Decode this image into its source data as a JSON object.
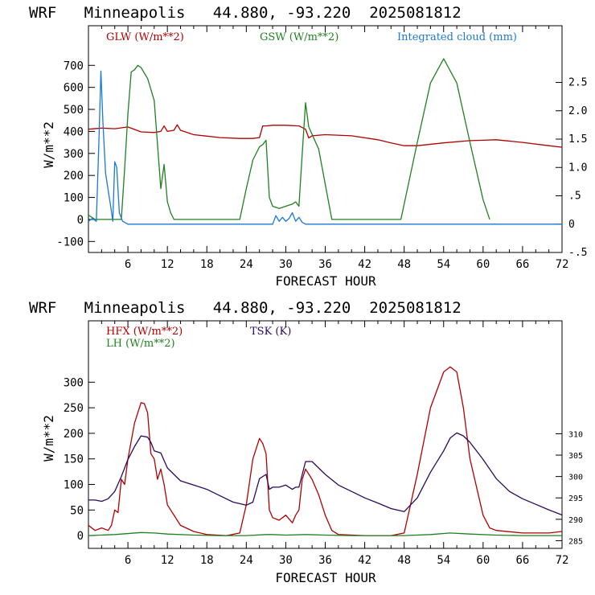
{
  "chart_data": [
    {
      "type": "line",
      "title": "WRF   Minneapolis   44.880, -93.220  2025081812",
      "xlabel": "FORECAST HOUR",
      "ylabel": "W/m**2",
      "xlim": [
        0,
        72
      ],
      "x_ticks": [
        "6",
        "12",
        "18",
        "24",
        "30",
        "36",
        "42",
        "48",
        "54",
        "60",
        "66",
        "72"
      ],
      "ylim": [
        -150,
        880
      ],
      "y_ticks": [
        "-100",
        "0",
        "100",
        "200",
        "300",
        "400",
        "500",
        "600",
        "700"
      ],
      "y2lim": [
        -0.5,
        3.5
      ],
      "y2_ticks": [
        "-.5",
        "0",
        ".5",
        "1.0",
        "1.5",
        "2.0",
        "2.5"
      ],
      "grid": false,
      "series": [
        {
          "name": "GLW (W/m**2)",
          "color": "#b00000",
          "axis": "left",
          "x": [
            0,
            2,
            4,
            6,
            8,
            10,
            11,
            11.5,
            12,
            13,
            13.5,
            14,
            16,
            20,
            23,
            25,
            26,
            26.5,
            27,
            28,
            30,
            32,
            33,
            33.5,
            34,
            36,
            40,
            44,
            46,
            48,
            50,
            54,
            58,
            60,
            62,
            66,
            70,
            72
          ],
          "y": [
            410,
            415,
            412,
            420,
            398,
            395,
            400,
            425,
            400,
            405,
            430,
            405,
            385,
            372,
            368,
            368,
            372,
            425,
            425,
            428,
            428,
            425,
            410,
            370,
            380,
            385,
            380,
            362,
            348,
            335,
            335,
            348,
            358,
            360,
            362,
            350,
            335,
            328
          ]
        },
        {
          "name": "GSW (W/m**2)",
          "color": "#208020",
          "axis": "left",
          "x": [
            0,
            1,
            2,
            3,
            4,
            5,
            5.5,
            6,
            6.5,
            7,
            7.5,
            8,
            9,
            10,
            11,
            11.5,
            12,
            12.5,
            13,
            13.5,
            23,
            24,
            25,
            26,
            26.5,
            27,
            27.5,
            28,
            29,
            30,
            31,
            31.5,
            32,
            32.5,
            33,
            33.5,
            35,
            37,
            47.5,
            50,
            52,
            54,
            56,
            58,
            60,
            61
          ],
          "y": [
            20,
            0,
            0,
            0,
            0,
            0,
            230,
            480,
            670,
            680,
            700,
            690,
            640,
            540,
            140,
            250,
            80,
            30,
            0,
            0,
            0,
            140,
            270,
            330,
            340,
            360,
            100,
            60,
            50,
            60,
            70,
            80,
            60,
            300,
            530,
            420,
            320,
            0,
            0,
            350,
            620,
            730,
            620,
            350,
            90,
            0
          ]
        },
        {
          "name": "Integrated cloud (mm)",
          "color": "#1a78d8",
          "axis": "right",
          "x": [
            0,
            0.6,
            1.2,
            1.6,
            1.9,
            2.2,
            2.6,
            3.0,
            3.4,
            3.7,
            4.0,
            4.3,
            4.7,
            5.2,
            6,
            28,
            28.5,
            29,
            29.5,
            30,
            30.5,
            31,
            31.5,
            32,
            32.5,
            33,
            72
          ],
          "y": [
            0.05,
            0.1,
            0.05,
            1.5,
            2.7,
            1.8,
            0.9,
            0.6,
            0.3,
            0.05,
            1.1,
            1.0,
            0.2,
            0.05,
            0,
            0,
            0.15,
            0.05,
            0.12,
            0.05,
            0.1,
            0.2,
            0.05,
            0.12,
            0.03,
            0,
            0
          ]
        }
      ]
    },
    {
      "type": "line",
      "title": "WRF   Minneapolis   44.880, -93.220  2025081812",
      "xlabel": "FORECAST HOUR",
      "ylabel": "W/m**2",
      "xlim": [
        0,
        72
      ],
      "x_ticks": [
        "6",
        "12",
        "18",
        "24",
        "30",
        "36",
        "42",
        "48",
        "54",
        "60",
        "66",
        "72"
      ],
      "ylim": [
        -25,
        420
      ],
      "y_ticks": [
        "0",
        "50",
        "100",
        "150",
        "200",
        "250",
        "300"
      ],
      "y2lim": [
        283.2,
        336.4
      ],
      "y2_ticks": [
        "285",
        "290",
        "295",
        "300",
        "305",
        "310"
      ],
      "grid": false,
      "series": [
        {
          "name": "HFX (W/m**2)",
          "color": "#b00000",
          "axis": "left",
          "x": [
            0,
            1,
            2,
            3,
            3.5,
            4,
            4.5,
            5,
            5.5,
            6,
            7,
            8,
            8.5,
            9,
            9.5,
            10,
            10.5,
            11,
            11.5,
            12,
            14,
            16,
            18,
            21,
            23,
            24,
            25,
            26,
            26.5,
            27,
            27.5,
            28,
            29,
            30,
            31,
            31.5,
            32,
            32.5,
            33,
            34,
            35,
            36,
            37,
            38,
            42,
            46,
            48,
            50,
            52,
            54,
            55,
            56,
            57,
            58,
            60,
            61,
            62,
            66,
            70,
            72
          ],
          "y": [
            20,
            10,
            15,
            10,
            20,
            50,
            45,
            110,
            100,
            150,
            220,
            260,
            258,
            240,
            160,
            150,
            110,
            130,
            100,
            60,
            20,
            8,
            2,
            0,
            5,
            60,
            150,
            190,
            180,
            160,
            50,
            35,
            30,
            40,
            25,
            40,
            50,
            110,
            130,
            110,
            80,
            40,
            10,
            2,
            0,
            0,
            5,
            120,
            250,
            320,
            330,
            320,
            250,
            150,
            40,
            15,
            10,
            5,
            5,
            8
          ]
        },
        {
          "name": "LH (W/m**2)",
          "color": "#208020",
          "axis": "left",
          "x": [
            0,
            4,
            8,
            10,
            12,
            16,
            20,
            24,
            27,
            28,
            30,
            33,
            36,
            40,
            44,
            48,
            52,
            55,
            58,
            62,
            66,
            70,
            72
          ],
          "y": [
            0,
            2,
            6,
            5,
            3,
            1,
            0,
            0,
            2,
            2,
            1,
            2,
            1,
            0,
            0,
            0,
            2,
            5,
            3,
            1,
            0,
            0,
            0
          ]
        },
        {
          "name": "TSK (K)",
          "color": "#2a0a5e",
          "axis": "right",
          "x": [
            0,
            1,
            2,
            3,
            4,
            5,
            6,
            7,
            8,
            9,
            9.5,
            10,
            11,
            12,
            14,
            16,
            18,
            20,
            22,
            24,
            25,
            26,
            27,
            27.5,
            28,
            29,
            30,
            31,
            31.5,
            32,
            32.5,
            33,
            34,
            35,
            36,
            38,
            40,
            42,
            44,
            46,
            48,
            50,
            52,
            54,
            55,
            56,
            57,
            58,
            60,
            62,
            64,
            66,
            68,
            70,
            72
          ],
          "y": [
            294.5,
            294.5,
            294.2,
            294.8,
            296.5,
            300,
            304,
            307,
            309.5,
            309.2,
            308,
            306,
            305.5,
            302,
            299,
            298,
            297,
            295.5,
            294,
            293.3,
            294,
            299.5,
            300.5,
            297,
            297.5,
            297.5,
            298,
            297,
            297.5,
            297.5,
            300.5,
            303.5,
            303.5,
            302,
            300.5,
            298,
            296.5,
            295,
            293.8,
            292.5,
            291.8,
            295,
            301,
            306,
            309,
            310.2,
            309.5,
            308,
            304,
            299.5,
            296.5,
            294.8,
            293.5,
            292.2,
            291
          ]
        }
      ]
    }
  ]
}
